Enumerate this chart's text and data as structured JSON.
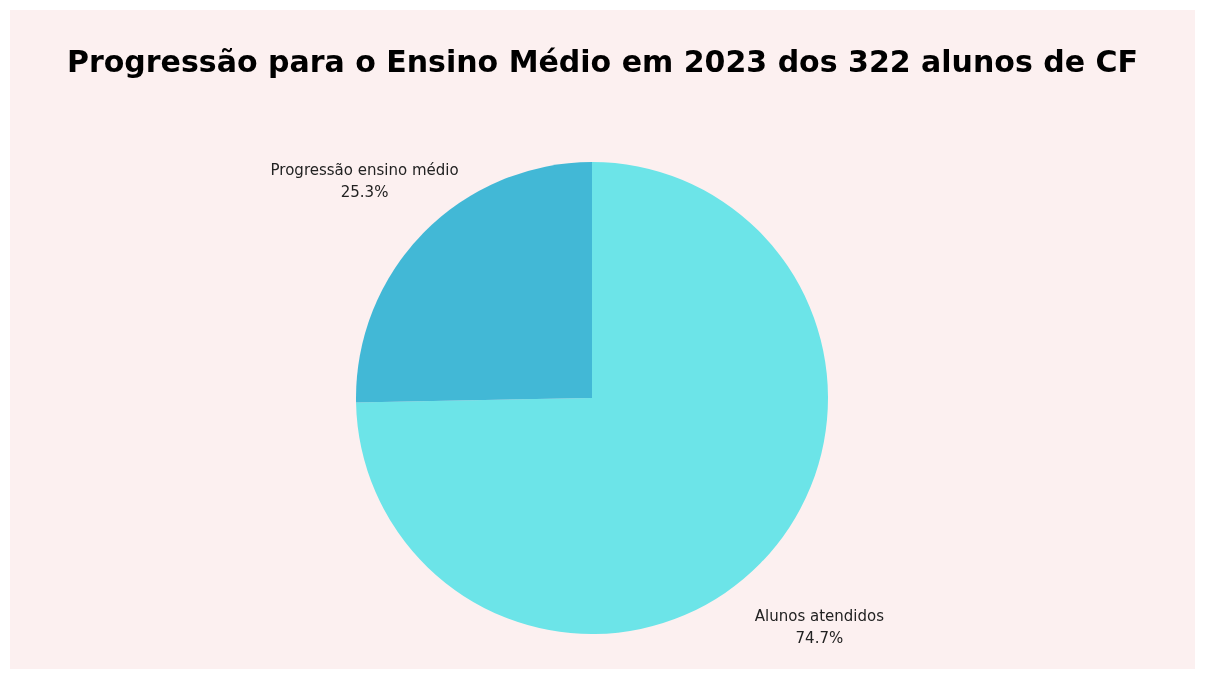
{
  "chart_data": {
    "type": "pie",
    "title": "Progressão para o Ensino Médio em 2023 dos 322 alunos de CF",
    "categories": [
      "Alunos atendidos",
      "Progressão ensino médio"
    ],
    "values": [
      74.7,
      25.3
    ],
    "colors": [
      "#6ce4e8",
      "#42b8d6"
    ],
    "value_labels": [
      "74.7%",
      "25.3%"
    ]
  }
}
